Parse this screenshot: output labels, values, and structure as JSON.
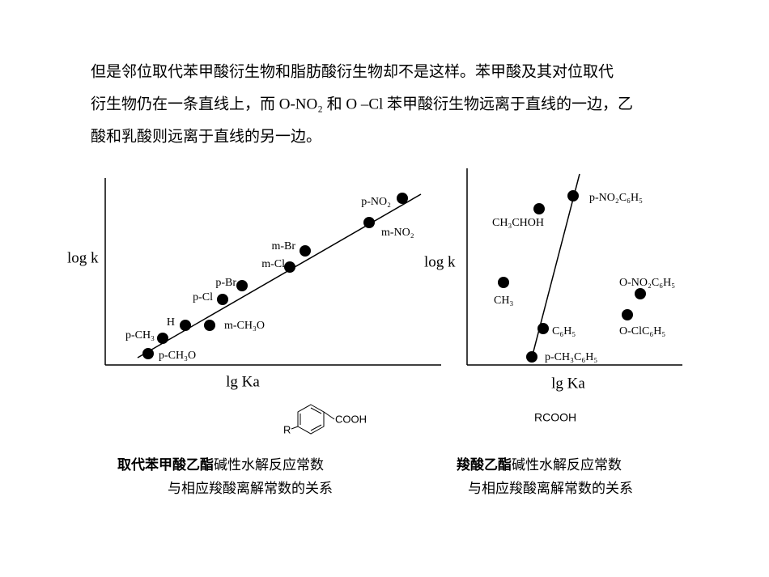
{
  "paragraph": [
    "但是邻位取代苯甲酸衍生物和脂肪酸衍生物却不是这样。苯甲酸及其对位取代",
    "衍生物仍在一条直线上，而 O-NO₂ 和 O –Cl  苯甲酸衍生物远离于直线的一边，乙",
    "酸和乳酸则远离于直线的另一边。"
  ],
  "left_diagram": {
    "y_label": "log k",
    "x_label": "lg Ka",
    "points": [
      {
        "label": "p-NO₂"
      },
      {
        "label": "m-NO₂"
      },
      {
        "label": "m-Br"
      },
      {
        "label": "m-Cl"
      },
      {
        "label": "p-Br"
      },
      {
        "label": "p-Cl"
      },
      {
        "label": "H"
      },
      {
        "label": "m-CH₃O"
      },
      {
        "label": "p-CH₃"
      },
      {
        "label": "p-CH₃O"
      }
    ],
    "structure": {
      "substituent": "R",
      "group": "COOH"
    },
    "caption": {
      "bold": "取代苯甲酸乙酯",
      "rest": "碱性水解反应常数",
      "line2": "与相应羧酸离解常数的关系"
    }
  },
  "right_diagram": {
    "y_label": "log k",
    "x_label": "lg Ka",
    "points": [
      {
        "label": "p-NO₂C₆H₅"
      },
      {
        "label": "CH₃CHOH"
      },
      {
        "label": "CH₃"
      },
      {
        "label": "O-NO₂C₆H₅"
      },
      {
        "label": "O-ClC₆H₅"
      },
      {
        "label": "C₆H₅"
      },
      {
        "label": "p-CH₃C₆H₅"
      }
    ],
    "formula": "RCOOH",
    "caption": {
      "bold": "羧酸乙酯",
      "rest": "碱性水解反应常数",
      "line2": "与相应羧酸离解常数的关系"
    }
  }
}
